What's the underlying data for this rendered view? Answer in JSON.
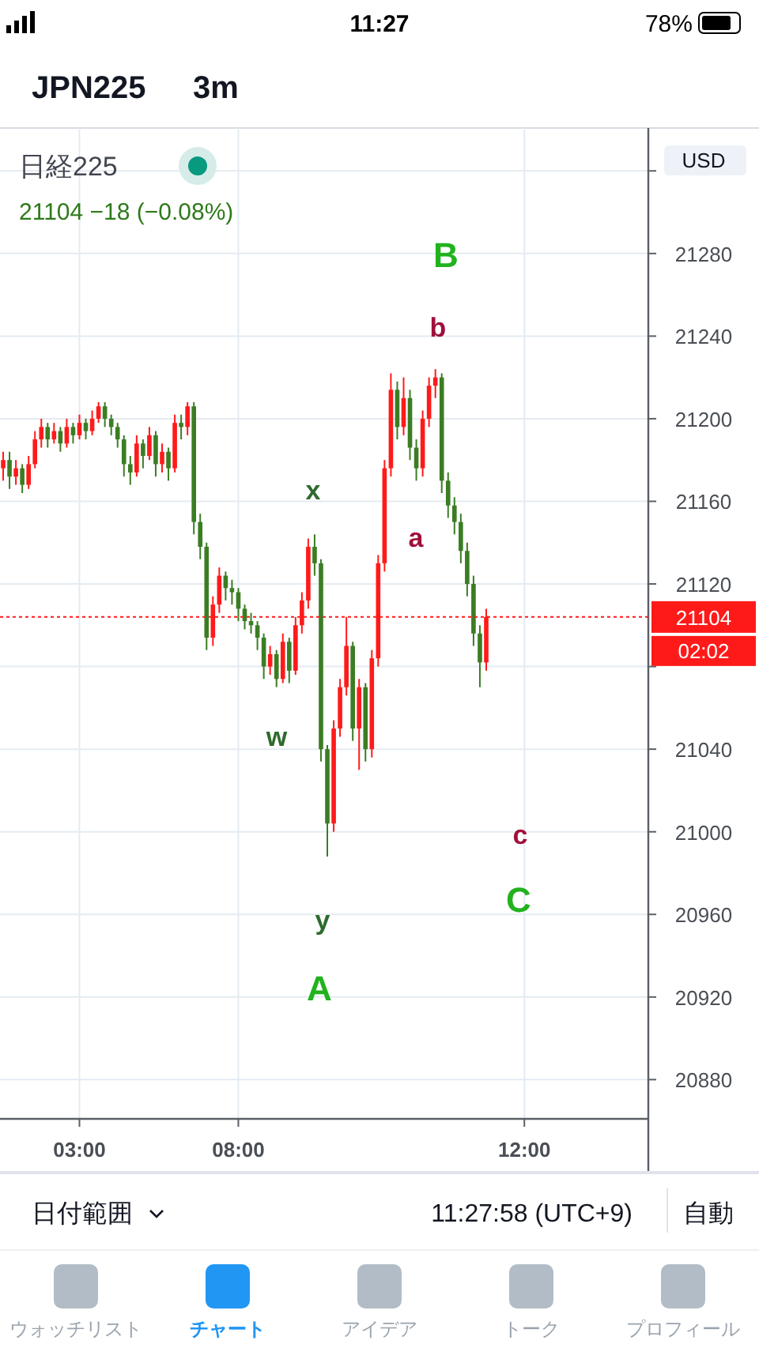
{
  "chart_data": {
    "type": "candlestick",
    "title": "日経225",
    "subtitle": "21104 −18 (−0.08%)",
    "categories": [
      null,
      null,
      null,
      null,
      null,
      null,
      null,
      null,
      null,
      null,
      null,
      null,
      "03:00",
      null,
      null,
      null,
      null,
      null,
      null,
      null,
      null,
      null,
      null,
      null,
      null,
      null,
      null,
      null,
      null,
      null,
      null,
      null,
      null,
      null,
      null,
      null,
      null,
      "08:00",
      null,
      null,
      null,
      null,
      null,
      null,
      null,
      null,
      null,
      null,
      null,
      null,
      null,
      null,
      null,
      null,
      null,
      null,
      null,
      null,
      null,
      null,
      null,
      null,
      null,
      null,
      null,
      null,
      null,
      null,
      null,
      null,
      null,
      null,
      null,
      null,
      null,
      null,
      null,
      null,
      null,
      null,
      null,
      null,
      "12:00",
      null,
      null,
      null,
      null,
      null,
      null,
      null,
      null,
      null,
      null,
      null,
      null,
      null,
      null,
      null,
      null,
      null,
      null,
      null
    ],
    "ohlc": [
      [
        21176,
        21184,
        21170,
        21180
      ],
      [
        21180,
        21184,
        21166,
        21172
      ],
      [
        21172,
        21180,
        21168,
        21176
      ],
      [
        21176,
        21178,
        21164,
        21168
      ],
      [
        21168,
        21182,
        21166,
        21178
      ],
      [
        21178,
        21194,
        21176,
        21190
      ],
      [
        21190,
        21200,
        21186,
        21196
      ],
      [
        21196,
        21198,
        21186,
        21190
      ],
      [
        21190,
        21198,
        21188,
        21194
      ],
      [
        21194,
        21196,
        21184,
        21188
      ],
      [
        21188,
        21200,
        21186,
        21196
      ],
      [
        21196,
        21198,
        21188,
        21192
      ],
      [
        21192,
        21202,
        21190,
        21198
      ],
      [
        21198,
        21200,
        21190,
        21194
      ],
      [
        21194,
        21204,
        21192,
        21200
      ],
      [
        21200,
        21208,
        21198,
        21206
      ],
      [
        21206,
        21208,
        21196,
        21200
      ],
      [
        21200,
        21202,
        21192,
        21196
      ],
      [
        21196,
        21198,
        21186,
        21190
      ],
      [
        21190,
        21192,
        21172,
        21178
      ],
      [
        21178,
        21182,
        21168,
        21174
      ],
      [
        21174,
        21192,
        21172,
        21188
      ],
      [
        21188,
        21190,
        21176,
        21182
      ],
      [
        21182,
        21196,
        21180,
        21192
      ],
      [
        21192,
        21194,
        21172,
        21178
      ],
      [
        21178,
        21188,
        21174,
        21184
      ],
      [
        21184,
        21186,
        21170,
        21176
      ],
      [
        21176,
        21202,
        21174,
        21198
      ],
      [
        21198,
        21202,
        21190,
        21196
      ],
      [
        21196,
        21208,
        21192,
        21206
      ],
      [
        21206,
        21208,
        21144,
        21150
      ],
      [
        21150,
        21154,
        21132,
        21138
      ],
      [
        21138,
        21140,
        21088,
        21094
      ],
      [
        21094,
        21114,
        21090,
        21110
      ],
      [
        21110,
        21128,
        21106,
        21124
      ],
      [
        21124,
        21126,
        21112,
        21118
      ],
      [
        21118,
        21122,
        21110,
        21116
      ],
      [
        21116,
        21118,
        21102,
        21108
      ],
      [
        21108,
        21110,
        21098,
        21102
      ],
      [
        21102,
        21106,
        21096,
        21100
      ],
      [
        21100,
        21102,
        21088,
        21094
      ],
      [
        21094,
        21096,
        21074,
        21080
      ],
      [
        21080,
        21090,
        21076,
        21086
      ],
      [
        21086,
        21088,
        21070,
        21074
      ],
      [
        21074,
        21096,
        21072,
        21092
      ],
      [
        21092,
        21094,
        21072,
        21078
      ],
      [
        21078,
        21104,
        21076,
        21100
      ],
      [
        21100,
        21116,
        21096,
        21112
      ],
      [
        21112,
        21142,
        21108,
        21138
      ],
      [
        21138,
        21144,
        21124,
        21130
      ],
      [
        21130,
        21132,
        21034,
        21040
      ],
      [
        21040,
        21042,
        20988,
        21004
      ],
      [
        21004,
        21054,
        21000,
        21050
      ],
      [
        21050,
        21074,
        21046,
        21070
      ],
      [
        21070,
        21104,
        21066,
        21090
      ],
      [
        21090,
        21092,
        21044,
        21050
      ],
      [
        21050,
        21074,
        21030,
        21070
      ],
      [
        21070,
        21072,
        21034,
        21040
      ],
      [
        21040,
        21088,
        21036,
        21084
      ],
      [
        21084,
        21134,
        21080,
        21130
      ],
      [
        21130,
        21180,
        21126,
        21176
      ],
      [
        21176,
        21222,
        21172,
        21214
      ],
      [
        21214,
        21218,
        21190,
        21196
      ],
      [
        21196,
        21220,
        21192,
        21210
      ],
      [
        21210,
        21214,
        21180,
        21186
      ],
      [
        21186,
        21190,
        21170,
        21176
      ],
      [
        21176,
        21204,
        21172,
        21200
      ],
      [
        21200,
        21220,
        21196,
        21216
      ],
      [
        21216,
        21224,
        21210,
        21220
      ],
      [
        21220,
        21222,
        21164,
        21170
      ],
      [
        21170,
        21174,
        21152,
        21158
      ],
      [
        21158,
        21162,
        21144,
        21150
      ],
      [
        21150,
        21154,
        21130,
        21136
      ],
      [
        21136,
        21140,
        21114,
        21120
      ],
      [
        21120,
        21124,
        21090,
        21096
      ],
      [
        21096,
        21100,
        21070,
        21082
      ],
      [
        21082,
        21108,
        21078,
        21104
      ],
      null,
      null,
      null,
      null,
      null,
      null,
      null,
      null,
      null,
      null,
      null,
      null,
      null,
      null,
      null,
      null,
      null,
      null,
      null,
      null,
      null,
      null,
      null,
      null,
      null
    ],
    "colors": [
      "#ff1a1a",
      "#3b7d23",
      "#ff1a1a",
      "#3b7d23",
      "#ff1a1a",
      "#ff1a1a",
      "#ff1a1a",
      "#3b7d23",
      "#ff1a1a",
      "#3b7d23",
      "#ff1a1a",
      "#3b7d23",
      "#ff1a1a",
      "#3b7d23",
      "#ff1a1a",
      "#ff1a1a",
      "#3b7d23",
      "#3b7d23",
      "#3b7d23",
      "#3b7d23",
      "#3b7d23",
      "#ff1a1a",
      "#3b7d23",
      "#ff1a1a",
      "#3b7d23",
      "#ff1a1a",
      "#3b7d23",
      "#ff1a1a",
      "#3b7d23",
      "#ff1a1a",
      "#3b7d23",
      "#3b7d23",
      "#3b7d23",
      "#ff1a1a",
      "#ff1a1a",
      "#3b7d23",
      "#3b7d23",
      "#3b7d23",
      "#3b7d23",
      "#3b7d23",
      "#3b7d23",
      "#3b7d23",
      "#ff1a1a",
      "#3b7d23",
      "#ff1a1a",
      "#3b7d23",
      "#ff1a1a",
      "#ff1a1a",
      "#ff1a1a",
      "#3b7d23",
      "#3b7d23",
      "#3b7d23",
      "#ff1a1a",
      "#ff1a1a",
      "#ff1a1a",
      "#3b7d23",
      "#ff1a1a",
      "#3b7d23",
      "#ff1a1a",
      "#ff1a1a",
      "#ff1a1a",
      "#ff1a1a",
      "#3b7d23",
      "#ff1a1a",
      "#3b7d23",
      "#3b7d23",
      "#ff1a1a",
      "#ff1a1a",
      "#ff1a1a",
      "#3b7d23",
      "#3b7d23",
      "#3b7d23",
      "#3b7d23",
      "#3b7d23",
      "#3b7d23",
      "#3b7d23",
      "#ff1a1a",
      null,
      null,
      null,
      null,
      null,
      null,
      null,
      null,
      null,
      null,
      null,
      null,
      null,
      null,
      null,
      null,
      null,
      null,
      null,
      null,
      null,
      null,
      null,
      null,
      null
    ],
    "ylim": [
      20861,
      21340
    ],
    "yticks": [
      20880,
      20920,
      20960,
      21000,
      21040,
      {
        "value": 21080,
        "label": null
      },
      21120,
      21160,
      21200,
      21240,
      21280,
      {
        "value": 21320,
        "label": null
      }
    ],
    "grid": true,
    "ref_lines": [
      {
        "axis": "y",
        "value": 21104,
        "label": "21104",
        "color": "#ff1a1a",
        "line_style": "dotted"
      }
    ],
    "annotations": [
      "B",
      "b",
      "x",
      "a",
      "w",
      "y",
      "A",
      "c",
      "C",
      "JPN225",
      "3m",
      "USD",
      "02:02",
      "日付範囲",
      "11:27:58 (UTC+9)",
      "自動",
      "ウォッチリスト",
      "チャート",
      "アイデア",
      "トーク",
      "プロフィール",
      "11:27",
      "78%"
    ]
  }
}
